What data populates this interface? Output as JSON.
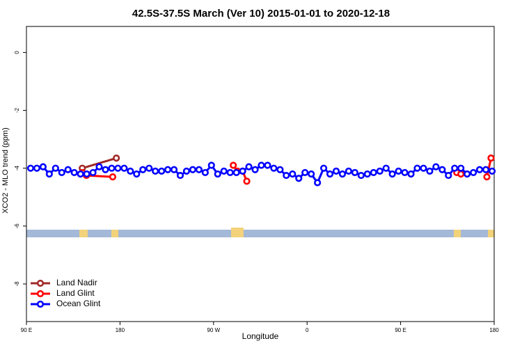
{
  "chart_data": {
    "type": "line",
    "title": "42.5S-37.5S March (Ver 10)   2015-01-01 to 2020-12-18",
    "x_label": "Longitude",
    "y_label": "XCO2 - MLO trend (ppm)",
    "xlim": [
      90,
      540
    ],
    "xticks": [
      {
        "value": 90,
        "label": "90 E"
      },
      {
        "value": 180,
        "label": "180"
      },
      {
        "value": 270,
        "label": "90 W"
      },
      {
        "value": 360,
        "label": "0"
      },
      {
        "value": 450,
        "label": "90 E"
      },
      {
        "value": 540,
        "label": "180"
      }
    ],
    "ylim": [
      -9.3,
      0.9
    ],
    "yticks": [
      0,
      -2,
      -4,
      -6,
      -8
    ],
    "legend": "bottom-left",
    "series": [
      {
        "name": "Land Nadir",
        "color": "#a02828",
        "x": [
          143.7,
          176.5,
          null,
          537
        ],
        "values": [
          -4.0,
          -3.65,
          null,
          -3.65
        ]
      },
      {
        "name": "Land Glint",
        "color": "#ff0000",
        "x": [
          143.7,
          147.7,
          173,
          null,
          289,
          293,
          298,
          302,
          null,
          504,
          508,
          null,
          533,
          537
        ],
        "values": [
          -4.15,
          -4.25,
          -4.3,
          null,
          -3.9,
          -4.1,
          -4.1,
          -4.45,
          null,
          -4.15,
          -4.2,
          null,
          -4.3,
          -3.65
        ]
      },
      {
        "name": "Ocean Glint",
        "color": "#0000ff",
        "x": [
          94,
          100,
          106,
          112,
          118,
          124,
          130,
          136,
          142,
          148,
          154,
          160,
          166,
          172,
          178,
          184,
          190,
          196,
          202,
          208,
          214,
          220,
          226,
          232,
          238,
          244,
          250,
          256,
          262,
          268,
          274,
          280,
          286,
          292,
          298,
          304,
          310,
          316,
          322,
          328,
          334,
          340,
          346,
          352,
          358,
          364,
          370,
          376,
          382,
          388,
          394,
          400,
          406,
          412,
          418,
          424,
          430,
          436,
          442,
          448,
          454,
          460,
          466,
          472,
          478,
          484,
          490,
          496,
          502,
          508,
          514,
          520,
          526,
          532,
          538
        ],
        "values": [
          -4.0,
          -4.0,
          -3.95,
          -4.2,
          -4.0,
          -4.15,
          -4.05,
          -4.15,
          -4.2,
          -4.2,
          -4.15,
          -3.95,
          -4.05,
          -4.0,
          -4.0,
          -4.0,
          -4.1,
          -4.2,
          -4.05,
          -4.0,
          -4.1,
          -4.1,
          -4.05,
          -4.05,
          -4.25,
          -4.1,
          -4.05,
          -4.05,
          -4.15,
          -3.9,
          -4.2,
          -4.1,
          -4.15,
          -4.15,
          -4.1,
          -3.95,
          -4.05,
          -3.9,
          -3.9,
          -4.0,
          -4.05,
          -4.25,
          -4.2,
          -4.35,
          -4.15,
          -4.2,
          -4.5,
          -4.0,
          -4.2,
          -4.1,
          -4.2,
          -4.1,
          -4.15,
          -4.25,
          -4.2,
          -4.15,
          -4.1,
          -4.0,
          -4.2,
          -4.1,
          -4.15,
          -4.2,
          -4.0,
          -4.0,
          -4.1,
          -3.95,
          -4.05,
          -4.25,
          -4.0,
          -4.0,
          -4.2,
          -4.15,
          -4.05,
          -4.05,
          -4.1
        ]
      }
    ]
  }
}
